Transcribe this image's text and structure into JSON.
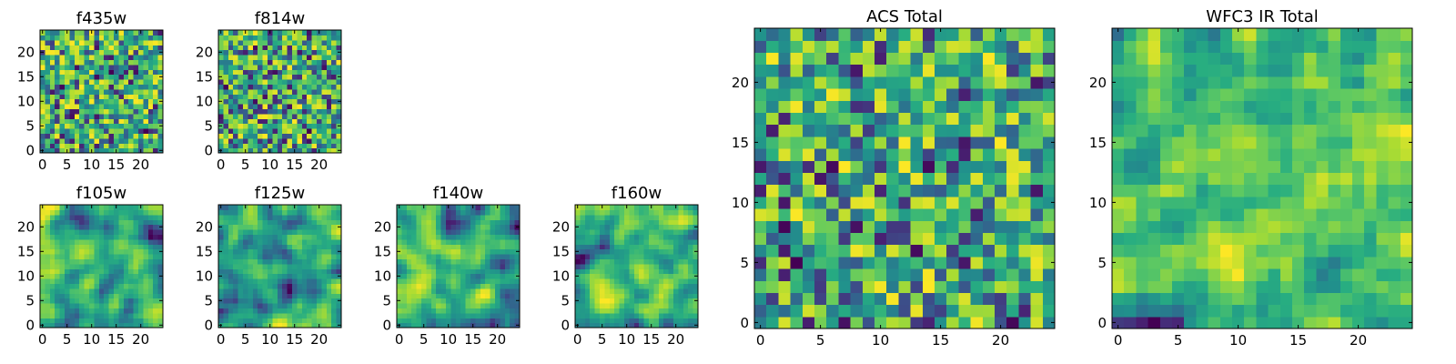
{
  "chart_data": [
    {
      "type": "heatmap",
      "title": "f435w",
      "grid_size": 25,
      "seed": 11,
      "smooth": 0,
      "xlim": [
        0,
        24
      ],
      "ylim": [
        0,
        24
      ],
      "xticks": [
        0,
        5,
        10,
        15,
        20
      ],
      "yticks": [
        0,
        5,
        10,
        15,
        20
      ],
      "colormap": "viridis",
      "xlabel": "",
      "ylabel": ""
    },
    {
      "type": "heatmap",
      "title": "f814w",
      "grid_size": 25,
      "seed": 23,
      "smooth": 0,
      "xlim": [
        0,
        24
      ],
      "ylim": [
        0,
        24
      ],
      "xticks": [
        0,
        5,
        10,
        15,
        20
      ],
      "yticks": [
        0,
        5,
        10,
        15,
        20
      ],
      "colormap": "viridis",
      "xlabel": "",
      "ylabel": ""
    },
    {
      "type": "heatmap",
      "title": "f105w",
      "grid_size": 25,
      "seed": 37,
      "smooth": 2,
      "xlim": [
        0,
        24
      ],
      "ylim": [
        0,
        24
      ],
      "xticks": [
        0,
        5,
        10,
        15,
        20
      ],
      "yticks": [
        0,
        5,
        10,
        15,
        20
      ],
      "colormap": "viridis",
      "xlabel": "",
      "ylabel": ""
    },
    {
      "type": "heatmap",
      "title": "f125w",
      "grid_size": 25,
      "seed": 41,
      "smooth": 2,
      "xlim": [
        0,
        24
      ],
      "ylim": [
        0,
        24
      ],
      "xticks": [
        0,
        5,
        10,
        15,
        20
      ],
      "yticks": [
        0,
        5,
        10,
        15,
        20
      ],
      "colormap": "viridis",
      "xlabel": "",
      "ylabel": ""
    },
    {
      "type": "heatmap",
      "title": "f140w",
      "grid_size": 25,
      "seed": 53,
      "smooth": 2,
      "xlim": [
        0,
        24
      ],
      "ylim": [
        0,
        24
      ],
      "xticks": [
        0,
        5,
        10,
        15,
        20
      ],
      "yticks": [
        0,
        5,
        10,
        15,
        20
      ],
      "colormap": "viridis",
      "xlabel": "",
      "ylabel": ""
    },
    {
      "type": "heatmap",
      "title": "f160w",
      "grid_size": 25,
      "seed": 67,
      "smooth": 2,
      "xlim": [
        0,
        24
      ],
      "ylim": [
        0,
        24
      ],
      "xticks": [
        0,
        5,
        10,
        15,
        20
      ],
      "yticks": [
        0,
        5,
        10,
        15,
        20
      ],
      "colormap": "viridis",
      "xlabel": "",
      "ylabel": ""
    },
    {
      "type": "heatmap",
      "title": "ACS Total",
      "grid_size": 25,
      "seed": 79,
      "smooth": 0,
      "xlim": [
        0,
        24
      ],
      "ylim": [
        0,
        24
      ],
      "xticks": [
        0,
        5,
        10,
        15,
        20
      ],
      "yticks": [
        0,
        5,
        10,
        15,
        20
      ],
      "colormap": "viridis",
      "xlabel": "",
      "ylabel": ""
    },
    {
      "type": "heatmap",
      "title": "WFC3 IR Total",
      "grid_size": 25,
      "seed": 97,
      "smooth": 1,
      "xlim": [
        0,
        24
      ],
      "ylim": [
        0,
        24
      ],
      "xticks": [
        0,
        5,
        10,
        15,
        20
      ],
      "yticks": [
        0,
        5,
        10,
        15,
        20
      ],
      "colormap": "viridis",
      "xlabel": "",
      "ylabel": ""
    }
  ],
  "colors": {
    "viridis_low": "#440154",
    "viridis_mid_low": "#31688e",
    "viridis_mid": "#21918c",
    "viridis_mid_high": "#5ec962",
    "viridis_high": "#fde725",
    "frame": "#000000",
    "background": "#ffffff"
  }
}
